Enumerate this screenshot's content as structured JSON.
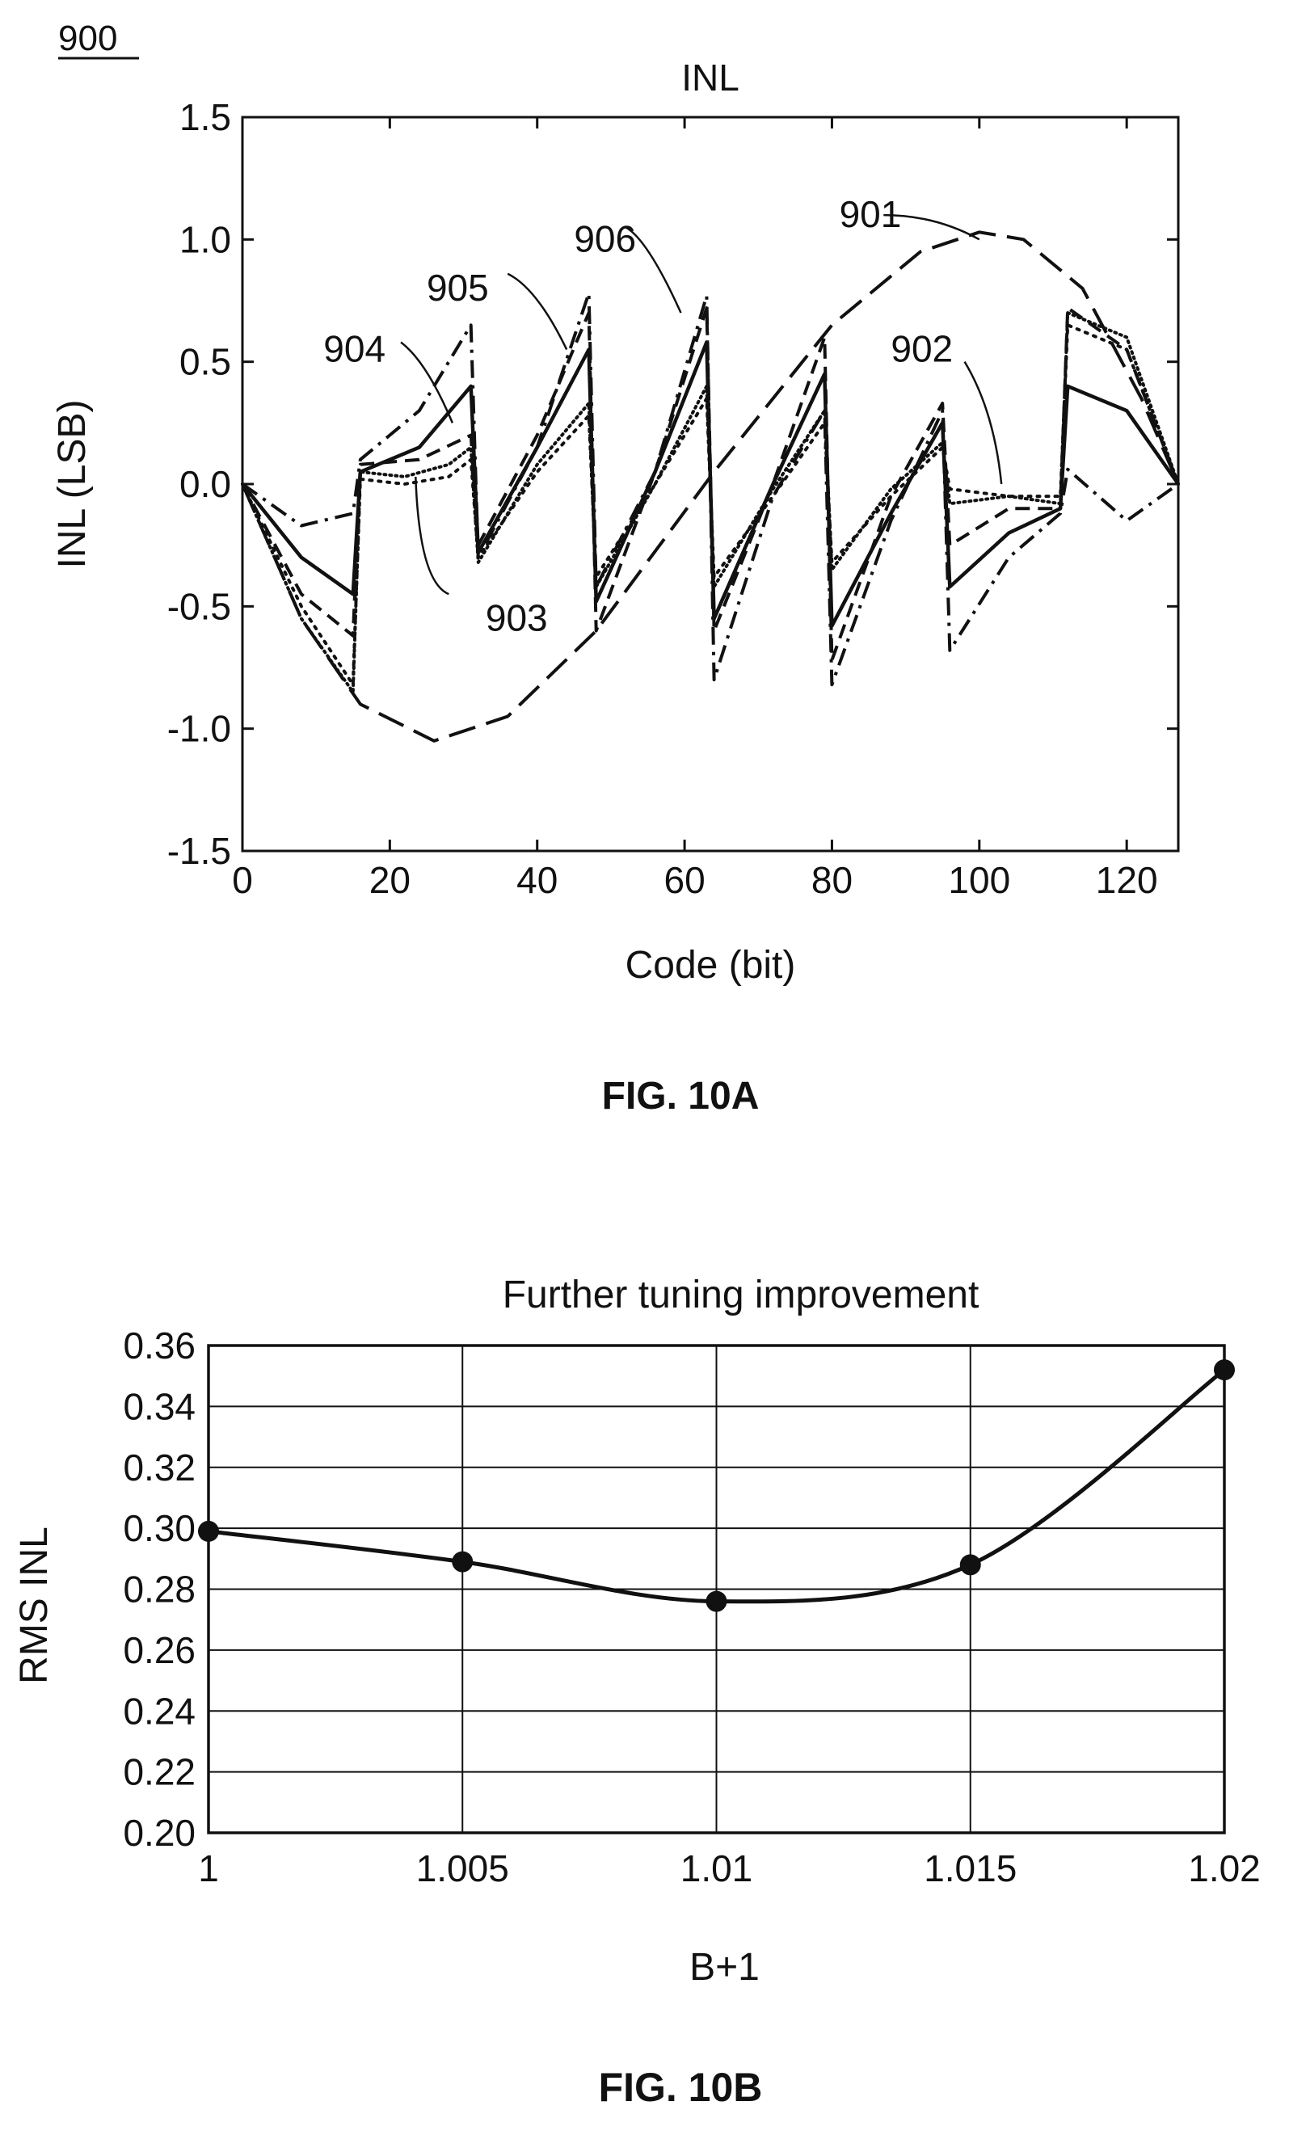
{
  "figure_ref": "900",
  "captions": {
    "a": "FIG. 10A",
    "b": "FIG. 10B"
  },
  "chart_data": [
    {
      "type": "line",
      "title": "INL",
      "xlabel": "Code (bit)",
      "ylabel": "INL (LSB)",
      "xlim": [
        0,
        127
      ],
      "ylim": [
        -1.5,
        1.5
      ],
      "xticks": [
        0,
        20,
        40,
        60,
        80,
        100,
        120
      ],
      "yticks": [
        -1.5,
        -1.0,
        -0.5,
        0.0,
        0.5,
        1.0,
        1.5
      ],
      "ytick_labels": [
        "-1.5",
        "-1.0",
        "-0.5",
        "0.0",
        "0.5",
        "1.0",
        "1.5"
      ],
      "grid": false,
      "series": [
        {
          "name": "901",
          "style": "long-dash",
          "x": [
            0,
            8,
            16,
            26,
            36,
            48,
            64,
            80,
            92,
            100,
            106,
            114,
            122,
            127
          ],
          "y": [
            0.0,
            -0.55,
            -0.9,
            -1.05,
            -0.95,
            -0.6,
            0.05,
            0.65,
            0.95,
            1.03,
            1.0,
            0.8,
            0.35,
            0.0
          ]
        },
        {
          "name": "902",
          "style": "dotted",
          "x": [
            0,
            8,
            15,
            16,
            22,
            28,
            31,
            32,
            40,
            47,
            48,
            56,
            63,
            64,
            72,
            79,
            80,
            88,
            95,
            96,
            104,
            111,
            112,
            120,
            127
          ],
          "y": [
            0.0,
            -0.5,
            -0.82,
            0.02,
            0.0,
            0.03,
            0.1,
            -0.3,
            0.05,
            0.28,
            -0.38,
            0.0,
            0.35,
            -0.38,
            -0.05,
            0.25,
            -0.32,
            -0.05,
            0.15,
            -0.02,
            -0.05,
            -0.05,
            0.65,
            0.55,
            0.0
          ]
        },
        {
          "name": "903",
          "style": "dotted-dense",
          "x": [
            0,
            8,
            15,
            16,
            22,
            28,
            31,
            32,
            40,
            47,
            48,
            56,
            63,
            64,
            72,
            79,
            80,
            88,
            95,
            96,
            104,
            111,
            112,
            120,
            127
          ],
          "y": [
            0.0,
            -0.55,
            -0.85,
            0.05,
            0.03,
            0.08,
            0.15,
            -0.32,
            0.08,
            0.33,
            -0.42,
            0.0,
            0.4,
            -0.42,
            -0.02,
            0.3,
            -0.35,
            -0.02,
            0.17,
            -0.08,
            -0.05,
            -0.08,
            0.7,
            0.6,
            0.0
          ]
        },
        {
          "name": "904",
          "style": "solid",
          "x": [
            0,
            8,
            15,
            16,
            24,
            31,
            32,
            40,
            47,
            48,
            56,
            63,
            64,
            72,
            79,
            80,
            88,
            95,
            96,
            104,
            111,
            112,
            120,
            127
          ],
          "y": [
            0.0,
            -0.3,
            -0.45,
            0.05,
            0.15,
            0.4,
            -0.28,
            0.15,
            0.55,
            -0.48,
            0.05,
            0.58,
            -0.55,
            0.0,
            0.45,
            -0.58,
            -0.12,
            0.25,
            -0.42,
            -0.2,
            -0.1,
            0.4,
            0.3,
            0.0
          ]
        },
        {
          "name": "905",
          "style": "dash",
          "x": [
            0,
            8,
            15,
            16,
            24,
            31,
            32,
            40,
            47,
            48,
            56,
            63,
            64,
            72,
            79,
            80,
            88,
            95,
            96,
            104,
            111,
            112,
            120,
            127
          ],
          "y": [
            0.0,
            -0.45,
            -0.62,
            0.08,
            0.1,
            0.2,
            -0.25,
            0.2,
            0.7,
            -0.6,
            0.05,
            0.72,
            -0.6,
            0.0,
            0.6,
            -0.72,
            -0.05,
            0.33,
            -0.25,
            -0.1,
            -0.1,
            0.72,
            0.55,
            0.0
          ]
        },
        {
          "name": "906",
          "style": "dash-dot",
          "x": [
            0,
            8,
            15,
            16,
            24,
            31,
            32,
            40,
            47,
            48,
            56,
            63,
            64,
            72,
            79,
            80,
            88,
            95,
            96,
            104,
            111,
            112,
            120,
            127
          ],
          "y": [
            0.0,
            -0.17,
            -0.12,
            0.1,
            0.3,
            0.65,
            -0.3,
            0.15,
            0.78,
            -0.42,
            0.05,
            0.77,
            -0.8,
            -0.05,
            0.3,
            -0.82,
            -0.15,
            0.3,
            -0.68,
            -0.3,
            -0.12,
            0.06,
            -0.15,
            0.0
          ]
        }
      ],
      "annotations": [
        "901",
        "902",
        "903",
        "904",
        "905",
        "906"
      ]
    },
    {
      "type": "line",
      "title": "Further tuning improvement",
      "xlabel": "B+1",
      "ylabel": "RMS INL",
      "xlim": [
        1,
        1.02
      ],
      "ylim": [
        0.2,
        0.36
      ],
      "xticks": [
        1,
        1.005,
        1.01,
        1.015,
        1.02
      ],
      "xtick_labels": [
        "1",
        "1.005",
        "1.01",
        "1.015",
        "1.02"
      ],
      "yticks": [
        0.2,
        0.22,
        0.24,
        0.26,
        0.28,
        0.3,
        0.32,
        0.34,
        0.36
      ],
      "ytick_labels": [
        "0.20",
        "0.22",
        "0.24",
        "0.26",
        "0.28",
        "0.30",
        "0.32",
        "0.34",
        "0.36"
      ],
      "grid": true,
      "series": [
        {
          "markers": true,
          "x": [
            1,
            1.005,
            1.01,
            1.015,
            1.02
          ],
          "y": [
            0.299,
            0.289,
            0.276,
            0.288,
            0.352
          ]
        }
      ]
    }
  ]
}
